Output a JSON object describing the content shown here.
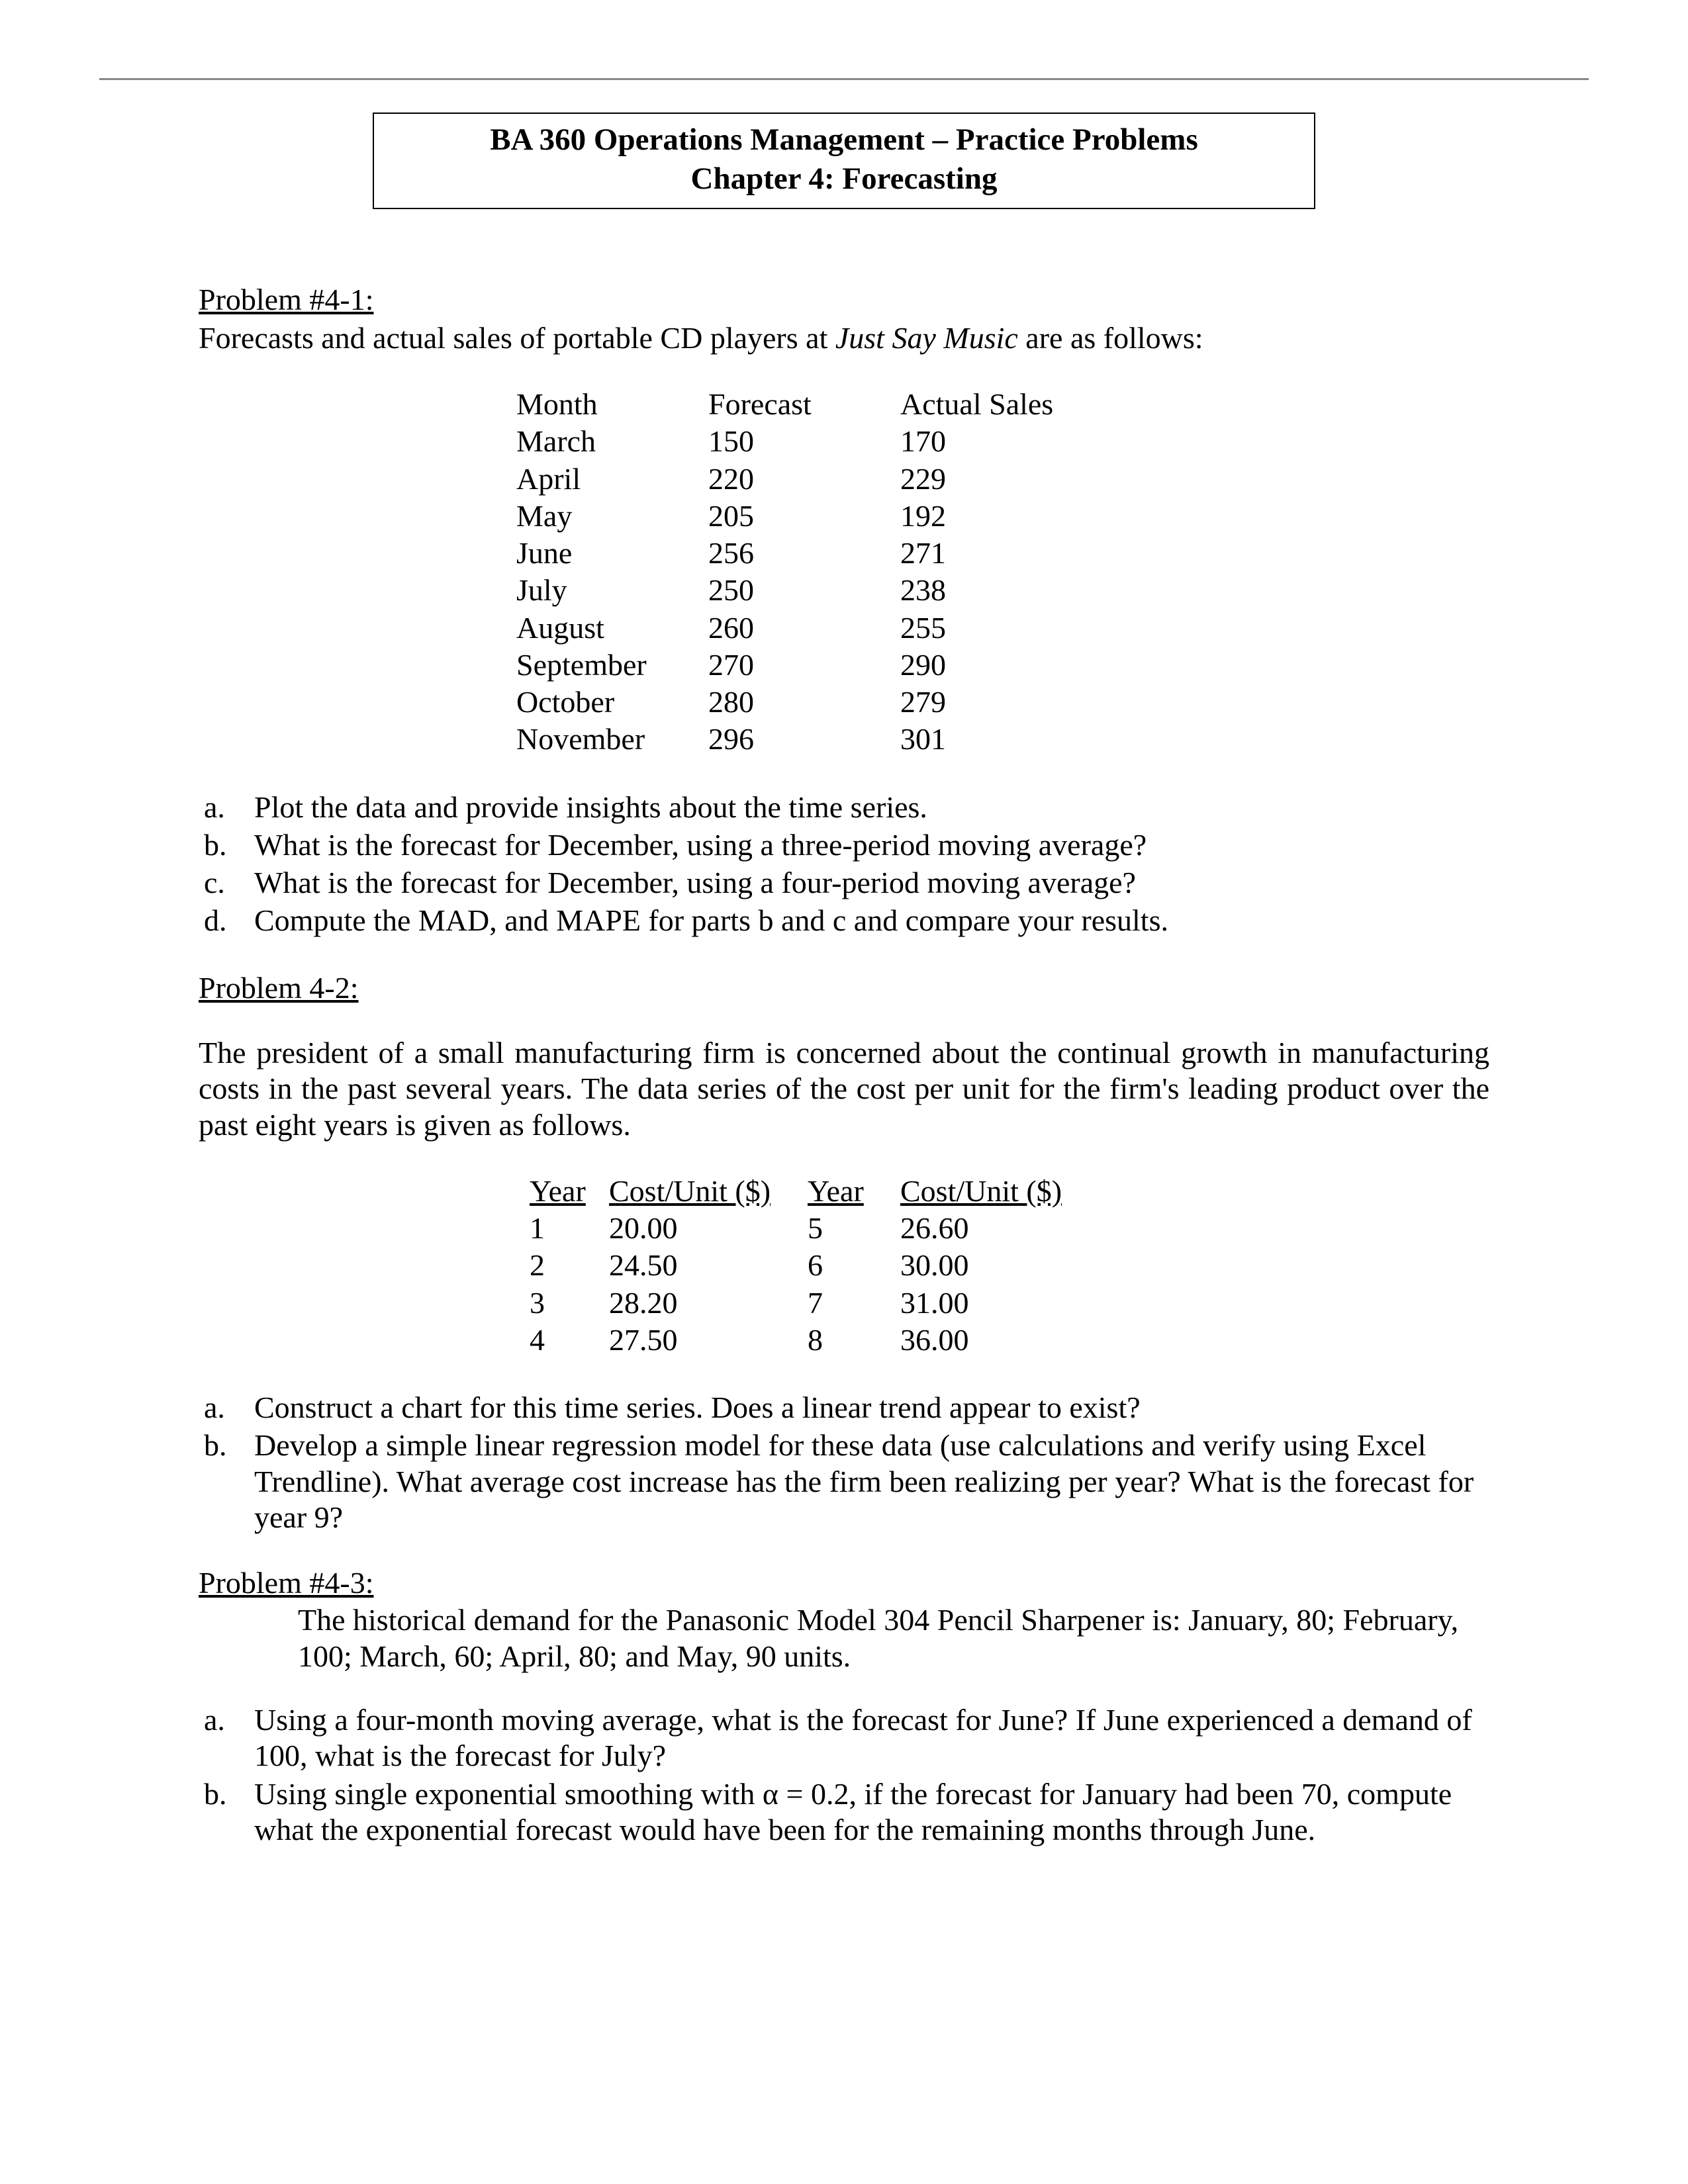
{
  "header": {
    "title_line1": "BA 360 Operations Management – Practice Problems",
    "title_line2": "Chapter 4:  Forecasting"
  },
  "problem1": {
    "label": "Problem #4-1:  ",
    "intro_before": "Forecasts and actual sales of portable CD players at ",
    "intro_italic": "Just Say Music",
    "intro_after": " are as follows:",
    "table": {
      "headers": [
        "Month",
        "Forecast",
        "Actual Sales"
      ],
      "rows": [
        [
          "March",
          "150",
          "170"
        ],
        [
          "April",
          "220",
          "229"
        ],
        [
          "May",
          "205",
          "192"
        ],
        [
          "June",
          "256",
          "271"
        ],
        [
          "July",
          "250",
          "238"
        ],
        [
          "August",
          "260",
          "255"
        ],
        [
          "September",
          "270",
          "290"
        ],
        [
          "October",
          "280",
          "279"
        ],
        [
          "November",
          "296",
          "301"
        ]
      ]
    },
    "items": {
      "a": "Plot the data and provide insights about the time series.",
      "b": "What is the forecast for December, using a three-period moving average?",
      "c": "What is the forecast for December, using a four-period moving average?",
      "d": "Compute the MAD, and MAPE for parts b and c and compare your results."
    }
  },
  "problem2": {
    "label": "Problem 4-2:",
    "intro": "The president of a small manufacturing firm is concerned about the continual growth in manufacturing costs in the past several years. The data series of the cost per unit for the firm's leading product over the past eight years is given as follows.",
    "table": {
      "headers": [
        "Year",
        "Cost/Unit ($)",
        "Year",
        "Cost/Unit ($)"
      ],
      "rows": [
        [
          "1",
          "20.00",
          "5",
          "26.60"
        ],
        [
          "2",
          "24.50",
          "6",
          "30.00"
        ],
        [
          "3",
          "28.20",
          "7",
          "31.00"
        ],
        [
          "4",
          "27.50",
          "8",
          "36.00"
        ]
      ]
    },
    "items": {
      "a": "Construct a chart for this time series. Does a linear trend appear to exist?",
      "b": "Develop a simple linear regression model for these data (use calculations and verify using Excel Trendline). What average cost increase has the firm been realizing per year?  What is the forecast for year 9?"
    }
  },
  "problem3": {
    "label": "Problem #4-3: ",
    "intro": "The historical demand for the Panasonic Model 304 Pencil Sharpener is:  January, 80; February, 100; March, 60; April, 80; and May, 90 units.",
    "items": {
      "a": "Using a four-month moving average, what is the forecast for June?  If June experienced a demand of 100, what is the forecast for July?",
      "b": "Using single exponential smoothing with α  = 0.2, if the forecast for January had been 70, compute what the exponential forecast would have been for the remaining months through June."
    }
  }
}
